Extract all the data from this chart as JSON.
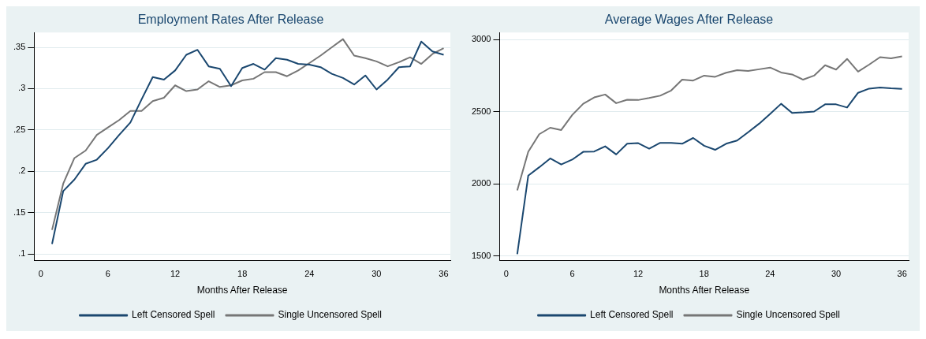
{
  "chart_data": [
    {
      "type": "line",
      "title": "Employment Rates After Release",
      "xlabel": "Months After Release",
      "x": [
        1,
        2,
        3,
        4,
        5,
        6,
        7,
        8,
        9,
        10,
        11,
        12,
        13,
        14,
        15,
        16,
        17,
        18,
        19,
        20,
        21,
        22,
        23,
        24,
        25,
        26,
        27,
        28,
        29,
        30,
        31,
        32,
        33,
        34,
        35,
        36
      ],
      "series": [
        {
          "name": "Left Censored Spell",
          "color": "#1a476f",
          "values": [
            0.112,
            0.176,
            0.19,
            0.209,
            0.214,
            0.228,
            0.244,
            0.259,
            0.287,
            0.314,
            0.311,
            0.322,
            0.341,
            0.347,
            0.327,
            0.324,
            0.303,
            0.325,
            0.33,
            0.323,
            0.337,
            0.335,
            0.33,
            0.329,
            0.326,
            0.318,
            0.313,
            0.305,
            0.316,
            0.299,
            0.311,
            0.326,
            0.327,
            0.357,
            0.345,
            0.341
          ]
        },
        {
          "name": "Single Uncensored Spell",
          "color": "#767676",
          "values": [
            0.129,
            0.185,
            0.216,
            0.225,
            0.244,
            0.253,
            0.262,
            0.273,
            0.273,
            0.285,
            0.289,
            0.304,
            0.297,
            0.299,
            0.309,
            0.302,
            0.304,
            0.31,
            0.312,
            0.32,
            0.32,
            0.315,
            0.322,
            0.331,
            0.34,
            0.35,
            0.36,
            0.34,
            0.337,
            0.333,
            0.327,
            0.332,
            0.338,
            0.33,
            0.342,
            0.349
          ]
        }
      ],
      "xlim": [
        -0.6,
        36.6
      ],
      "xticks": [
        0,
        6,
        12,
        18,
        24,
        30,
        36
      ],
      "ylim": [
        0.092,
        0.368
      ],
      "yticks": [
        {
          "value": 0.1,
          "label": ".1"
        },
        {
          "value": 0.15,
          "label": ".15"
        },
        {
          "value": 0.2,
          "label": ".2"
        },
        {
          "value": 0.25,
          "label": ".25"
        },
        {
          "value": 0.3,
          "label": ".3"
        },
        {
          "value": 0.35,
          "label": ".35"
        }
      ],
      "grid": "y",
      "legend": "bottom",
      "marker": "none",
      "line_style": "solid"
    },
    {
      "type": "line",
      "title": "Average Wages After Release",
      "xlabel": "Months After Release",
      "x": [
        1,
        2,
        3,
        4,
        5,
        6,
        7,
        8,
        9,
        10,
        11,
        12,
        13,
        14,
        15,
        16,
        17,
        18,
        19,
        20,
        21,
        22,
        23,
        24,
        25,
        26,
        27,
        28,
        29,
        30,
        31,
        32,
        33,
        34,
        35,
        36
      ],
      "series": [
        {
          "name": "Left Censored Spell",
          "color": "#1a476f",
          "values": [
            1514,
            2058,
            2116,
            2177,
            2135,
            2169,
            2223,
            2225,
            2261,
            2205,
            2279,
            2283,
            2245,
            2285,
            2285,
            2279,
            2319,
            2265,
            2237,
            2279,
            2301,
            2359,
            2418,
            2486,
            2556,
            2492,
            2496,
            2502,
            2552,
            2552,
            2530,
            2632,
            2661,
            2669,
            2663,
            2659
          ]
        },
        {
          "name": "Single Uncensored Spell",
          "color": "#767676",
          "values": [
            1956,
            2223,
            2345,
            2390,
            2374,
            2478,
            2556,
            2600,
            2620,
            2560,
            2584,
            2582,
            2596,
            2612,
            2648,
            2723,
            2717,
            2751,
            2743,
            2771,
            2789,
            2783,
            2795,
            2807,
            2773,
            2759,
            2723,
            2751,
            2823,
            2793,
            2867,
            2779,
            2827,
            2879,
            2871,
            2885
          ]
        }
      ],
      "xlim": [
        -0.6,
        36.6
      ],
      "xticks": [
        0,
        6,
        12,
        18,
        24,
        30,
        36
      ],
      "ylim": [
        1470,
        3050
      ],
      "yticks": [
        1500,
        2000,
        2500,
        3000
      ],
      "grid": "y",
      "legend": "bottom",
      "marker": "none",
      "line_style": "solid"
    }
  ]
}
